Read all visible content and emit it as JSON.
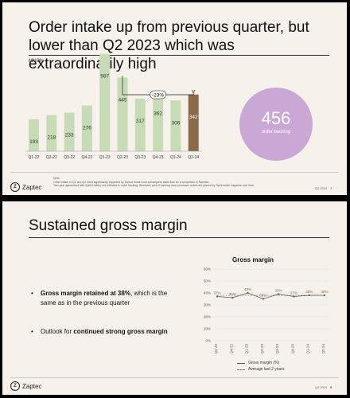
{
  "slide1": {
    "title": "Order intake up from previous quarter, but lower than Q2 2023 which was extraordinarily high",
    "unit_label": "MNOK",
    "highlight_label": "-23%",
    "backlog": {
      "value": "456",
      "label": "order backlog"
    },
    "note_lines": [
      "Note:",
      "Order intake in Q1 and Q2 2023 significantly impacted by Invited tender and subsequent sales ban for a competitor in Sweden.",
      "Two-year agreement with Spirit Hatchy not reflected in order backlog. Becomes part of backlog once purchase orders are placed by Spirit which happens over time."
    ],
    "footer_left": "Zaptec",
    "footer_quarter": "Q2 2024",
    "page_number": "7",
    "colors": {
      "bar": "#c7dbb6",
      "highlight_bar": "#8b6a4a",
      "bubble": "#c9a8d6"
    }
  },
  "slide2": {
    "title": "Sustained gross margin",
    "bullets": [
      {
        "bold": "Gross margin retained at 38%",
        "text": ", which is the same as in the previous quarter"
      },
      {
        "pre": "Outlook for ",
        "bold": "continued strong gross margin"
      }
    ],
    "footer_left": "Zaptec",
    "footer_quarter": "Q2 2024",
    "page_number": "8"
  },
  "chart_data": [
    {
      "type": "bar",
      "title": "",
      "ylabel": "MNOK",
      "categories": [
        "Q1-22",
        "Q2-22",
        "Q3-22",
        "Q4-22",
        "Q1-23",
        "Q2-23",
        "Q3-23",
        "Q4-23",
        "Q1-24",
        "Q2-24"
      ],
      "values": [
        193,
        218,
        233,
        276,
        587,
        445,
        317,
        362,
        306,
        342
      ],
      "ylim": [
        0,
        600
      ],
      "highlight_index": 9,
      "annotation": {
        "text": "-23%",
        "from": "Q2-23",
        "to": "Q2-24"
      }
    },
    {
      "type": "line",
      "title": "Gross margin",
      "x": [
        "Q2-22",
        "Q4-22",
        "Q1-23",
        "Q2-23",
        "Q3-23",
        "Q4-23",
        "Q1-24",
        "Q2-24"
      ],
      "series": [
        {
          "name": "Gross margin (%)",
          "values": [
            37,
            36,
            40,
            35,
            39,
            37,
            38,
            38
          ],
          "data_labels": [
            "37%",
            "36%",
            "40%",
            "35%",
            "39%",
            "37%",
            "38%",
            "38%"
          ]
        },
        {
          "name": "Average last 2 years",
          "values": [
            38,
            38,
            38,
            38,
            38,
            38,
            38,
            38
          ]
        }
      ],
      "yticks": [
        "0%",
        "10%",
        "20%",
        "30%",
        "40%",
        "50%",
        "60%"
      ],
      "ylim": [
        0,
        60
      ],
      "legend_position": "bottom"
    }
  ]
}
